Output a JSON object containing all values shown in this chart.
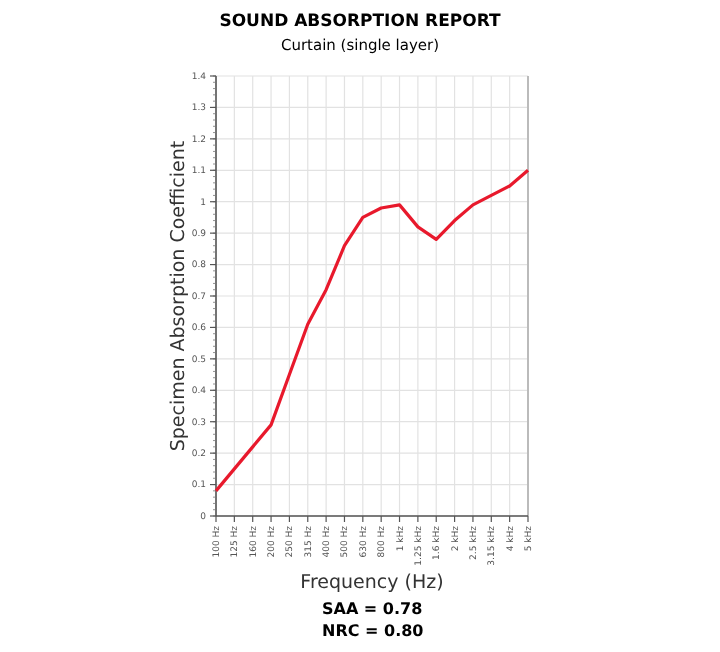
{
  "chart_data": {
    "type": "line",
    "title": "SOUND ABSORPTION REPORT",
    "subtitle": "Curtain (single layer)",
    "xlabel": "Frequency (Hz)",
    "ylabel": "Specimen Absorption Coefficient",
    "categories": [
      "100 Hz",
      "125 Hz",
      "160 Hz",
      "200 Hz",
      "250 Hz",
      "315 Hz",
      "400 Hz",
      "500 Hz",
      "630 Hz",
      "800 Hz",
      "1 kHz",
      "1.25 kHz",
      "1.6 kHz",
      "2 kHz",
      "2.5 kHz",
      "3.15 kHz",
      "4 kHz",
      "5 kHz"
    ],
    "series": [
      {
        "color": "#e8192c",
        "values": [
          0.08,
          0.15,
          0.22,
          0.29,
          0.45,
          0.61,
          0.72,
          0.86,
          0.95,
          0.98,
          0.99,
          0.92,
          0.88,
          0.94,
          0.99,
          1.02,
          1.05,
          1.1
        ]
      }
    ],
    "ylim": [
      0,
      1.4
    ],
    "yticks": [
      0,
      0.1,
      0.2,
      0.3,
      0.4,
      0.5,
      0.6,
      0.7,
      0.8,
      0.9,
      1,
      1.1,
      1.2,
      1.3,
      1.4
    ],
    "grid": true,
    "marker": "none",
    "line_style": "solid",
    "annotations": [
      "SAA = 0.78",
      "NRC = 0.80"
    ]
  }
}
